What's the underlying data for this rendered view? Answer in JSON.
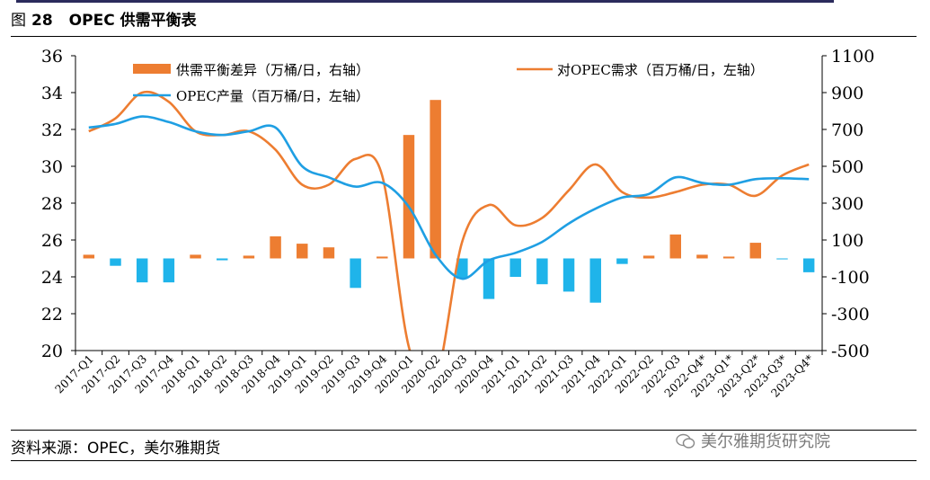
{
  "figure": {
    "label": "图",
    "number": "28",
    "title": "OPEC 供需平衡表",
    "source": "资料来源：OPEC，美尔雅期货",
    "watermark": "美尔雅期货研究院"
  },
  "chart_data": {
    "type": "bar+line",
    "categories": [
      "2017-Q1",
      "2017-Q2",
      "2017-Q3",
      "2017-Q4",
      "2018-Q1",
      "2018-Q2",
      "2018-Q3",
      "2018-Q4",
      "2019-Q1",
      "2019-Q2",
      "2019-Q3",
      "2019-Q4",
      "2020-Q1",
      "2020-Q2",
      "2020-Q3",
      "2020-Q4",
      "2021-Q1",
      "2021-Q2",
      "2021-Q3",
      "2021-Q4",
      "2022-Q1",
      "2022-Q2",
      "2022-Q3",
      "2022-Q4*",
      "2023-Q1*",
      "2023-Q2*",
      "2023-Q3*",
      "2023-Q4*"
    ],
    "left_axis": {
      "min": 20,
      "max": 36,
      "step": 2,
      "ticks": [
        "36",
        "34",
        "32",
        "30",
        "28",
        "26",
        "24",
        "22",
        "20"
      ]
    },
    "right_axis": {
      "min": -500,
      "max": 1100,
      "step": 200,
      "ticks": [
        "1100",
        "900",
        "700",
        "500",
        "300",
        "100",
        "-100",
        "-300",
        "-500"
      ]
    },
    "series": [
      {
        "name": "供需平衡差异（万桶/日，右轴）",
        "type": "bar",
        "axis": "right",
        "values": [
          20,
          -40,
          -130,
          -130,
          20,
          -10,
          15,
          120,
          80,
          60,
          -160,
          10,
          670,
          860,
          -110,
          -220,
          -100,
          -140,
          -180,
          -240,
          -30,
          15,
          130,
          20,
          10,
          85,
          -5,
          -75
        ],
        "colors": {
          "positive": "#ed7d31",
          "negative": "#1fb4ea"
        }
      },
      {
        "name": "对OPEC需求（百万桶/日，左轴）",
        "type": "line",
        "axis": "left",
        "color": "#ed7d31",
        "values": [
          31.9,
          32.6,
          34.0,
          33.5,
          31.9,
          31.7,
          31.9,
          30.9,
          29.0,
          29.0,
          30.4,
          29.5,
          20.2,
          18.4,
          25.9,
          27.9,
          26.8,
          27.2,
          28.7,
          30.1,
          28.6,
          28.3,
          28.6,
          29.0,
          29.0,
          28.4,
          29.5,
          30.1
        ]
      },
      {
        "name": "OPEC产量（百万桶/日，左轴）",
        "type": "line",
        "axis": "left",
        "color": "#1f9fe3",
        "values": [
          32.1,
          32.3,
          32.7,
          32.4,
          31.9,
          31.7,
          31.9,
          32.1,
          30.0,
          29.4,
          28.9,
          29.1,
          27.8,
          25.2,
          23.9,
          24.9,
          25.3,
          25.9,
          26.9,
          27.7,
          28.3,
          28.5,
          29.4,
          29.1,
          29.0,
          29.3,
          29.35,
          29.3
        ]
      }
    ],
    "legend": [
      {
        "key": "bar",
        "label": "供需平衡差异（万桶/日，右轴）"
      },
      {
        "key": "demand",
        "label": "对OPEC需求（百万桶/日，左轴）"
      },
      {
        "key": "production",
        "label": "OPEC产量（百万桶/日，左轴）"
      }
    ],
    "legend_position": "top",
    "grid": false
  }
}
